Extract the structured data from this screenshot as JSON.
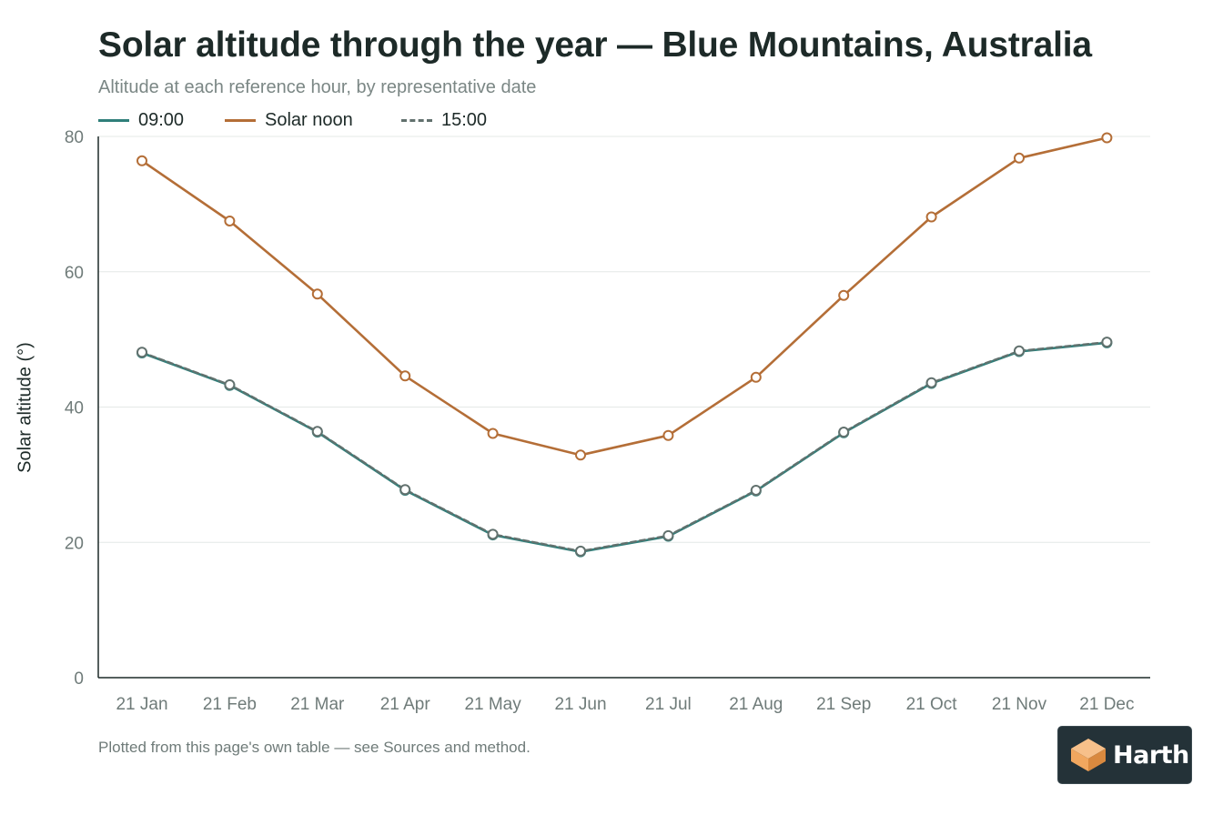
{
  "header": {
    "title": "Solar altitude through the year — Blue Mountains, Australia",
    "subtitle": "Altitude at each reference hour, by representative date"
  },
  "footer": {
    "note": "Plotted from this page's own table — see Sources and method."
  },
  "brand": {
    "name": "Harth",
    "logo_icon": "house-cube-icon",
    "colors": {
      "logo_bg": "#243238",
      "logo_orange": "#f1a75f"
    }
  },
  "chart_data": {
    "type": "line",
    "ylabel": "Solar altitude (°)",
    "xlabel": "",
    "ylim": [
      0,
      80
    ],
    "yticks": [
      0,
      20,
      40,
      60,
      80
    ],
    "grid": true,
    "legend_position": "top-left",
    "categories": [
      "21 Jan",
      "21 Feb",
      "21 Mar",
      "21 Apr",
      "21 May",
      "21 Jun",
      "21 Jul",
      "21 Aug",
      "21 Sep",
      "21 Oct",
      "21 Nov",
      "21 Dec"
    ],
    "series": [
      {
        "name": "09:00",
        "color": "#2f7f7a",
        "style": "solid",
        "values": [
          48.0,
          43.2,
          36.3,
          27.7,
          21.1,
          18.6,
          20.9,
          27.6,
          36.2,
          43.5,
          48.2,
          49.5
        ]
      },
      {
        "name": "Solar noon",
        "color": "#b46e37",
        "style": "solid",
        "values": [
          76.4,
          67.5,
          56.7,
          44.6,
          36.1,
          32.9,
          35.8,
          44.4,
          56.5,
          68.1,
          76.8,
          79.8
        ]
      },
      {
        "name": "15:00",
        "color": "#62716e",
        "style": "dashed",
        "values": [
          48.1,
          43.3,
          36.4,
          27.8,
          21.2,
          18.7,
          21.0,
          27.7,
          36.3,
          43.6,
          48.3,
          49.6
        ]
      }
    ]
  }
}
